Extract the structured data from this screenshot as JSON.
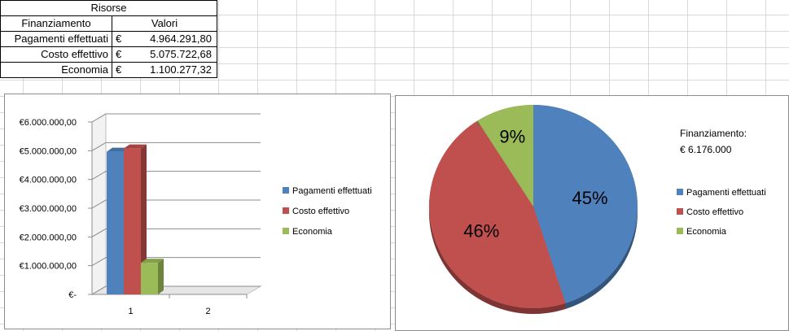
{
  "sheet": {
    "title": "Risorse",
    "col_headers": [
      "Finanziamento",
      "Valori"
    ],
    "rows": [
      {
        "label": "Pagamenti effettuati",
        "currency": "€",
        "value": "4.964.291,80"
      },
      {
        "label": "Costo effettivo",
        "currency": "€",
        "value": "5.075.722,68"
      },
      {
        "label": "Economia",
        "currency": "€",
        "value": "1.100.277,32"
      }
    ]
  },
  "colors": {
    "blue": "#4f81bd",
    "red": "#c0504d",
    "green": "#9bbb59"
  },
  "chart_data": [
    {
      "type": "bar",
      "categories": [
        "1",
        "2"
      ],
      "series": [
        {
          "name": "Pagamenti effettuati",
          "values": [
            4964291.8,
            null
          ],
          "color": "#4f81bd"
        },
        {
          "name": "Costo effettivo",
          "values": [
            5075722.68,
            null
          ],
          "color": "#c0504d"
        },
        {
          "name": "Economia",
          "values": [
            1100277.32,
            null
          ],
          "color": "#9bbb59"
        }
      ],
      "ylim": [
        0,
        6000000
      ],
      "yticks": [
        0,
        1000000,
        2000000,
        3000000,
        4000000,
        5000000,
        6000000
      ],
      "ytick_labels": [
        "€-",
        "€1.000.000,00",
        "€2.000.000,00",
        "€3.000.000,00",
        "€4.000.000,00",
        "€5.000.000,00",
        "€6.000.000,00"
      ],
      "legend": "right",
      "grid": true
    },
    {
      "type": "pie",
      "labels": [
        "Pagamenti effettuati",
        "Costo effettivo",
        "Economia"
      ],
      "values": [
        45,
        46,
        9
      ],
      "value_labels": [
        "45%",
        "46%",
        "9%"
      ],
      "colors": [
        "#4f81bd",
        "#c0504d",
        "#9bbb59"
      ],
      "annotation": [
        "Finanziamento:",
        "€ 6.176.000"
      ],
      "legend": "right"
    }
  ]
}
